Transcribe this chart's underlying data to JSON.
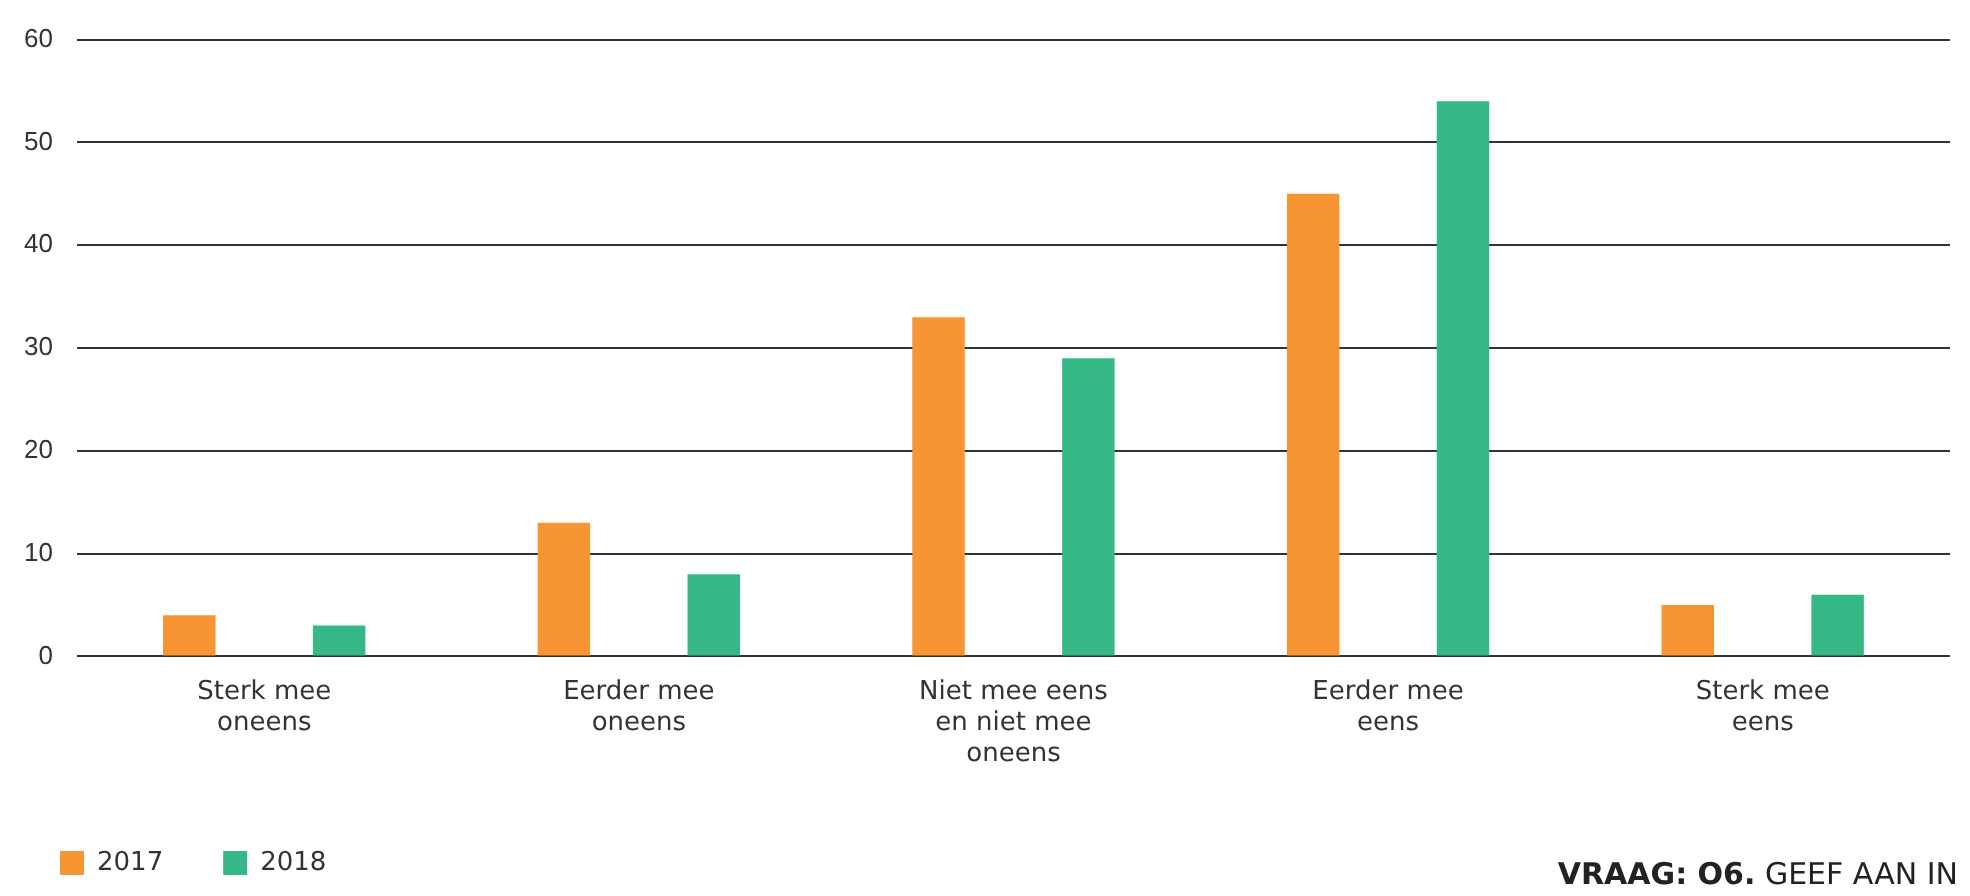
{
  "chart_data": {
    "type": "bar",
    "categories": [
      "Sterk mee oneens",
      "Eerder mee oneens",
      "Niet mee eens en niet mee oneens",
      "Eerder mee eens",
      "Sterk mee eens"
    ],
    "series": [
      {
        "name": "2017",
        "color": "#f79433",
        "values": [
          4,
          13,
          33,
          45,
          5
        ]
      },
      {
        "name": "2018",
        "color": "#35b886",
        "values": [
          3,
          8,
          29,
          54,
          6
        ]
      }
    ],
    "ylim": [
      0,
      60
    ],
    "yticks": [
      0,
      10,
      20,
      30,
      40,
      50,
      60
    ],
    "grid": "y",
    "legend": "bottom left",
    "annotations": [
      "VRAAG: O6. GEEF AAN IN"
    ]
  }
}
